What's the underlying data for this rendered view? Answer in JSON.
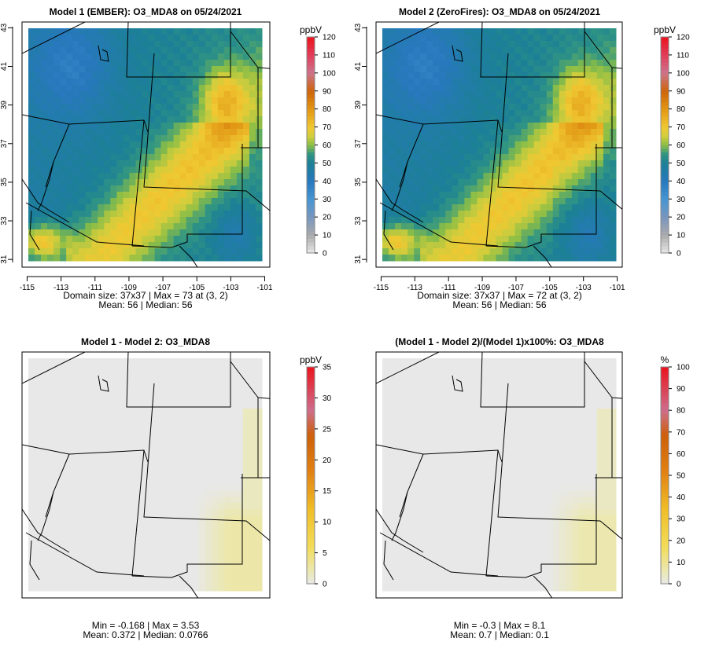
{
  "chart_data": [
    {
      "type": "heatmap",
      "title": "Model 1 (EMBER): O3_MDA8 on 05/24/2021",
      "colorbar_label": "ppbV",
      "colorbar_ticks": [
        "0",
        "10",
        "20",
        "30",
        "40",
        "50",
        "60",
        "70",
        "80",
        "90",
        "100",
        "110",
        "120"
      ],
      "color_range": [
        0,
        120
      ],
      "xticks": [
        "-115",
        "-113",
        "-111",
        "-109",
        "-107",
        "-105",
        "-103",
        "-101"
      ],
      "yticks": [
        "31",
        "33",
        "35",
        "37",
        "39",
        "41",
        "43"
      ],
      "xlim": [
        -115.3,
        -100.7
      ],
      "ylim": [
        30.6,
        43.3
      ],
      "stats_line1": "Domain size: 37x37 | Max = 73 at (3, 2)",
      "stats_line2": "Mean: 56 |  Median: 56",
      "field": {
        "mean": 56,
        "max": 73
      }
    },
    {
      "type": "heatmap",
      "title": "Model 2 (ZeroFires): O3_MDA8 on 05/24/2021",
      "colorbar_label": "ppbV",
      "colorbar_ticks": [
        "0",
        "10",
        "20",
        "30",
        "40",
        "50",
        "60",
        "70",
        "80",
        "90",
        "100",
        "110",
        "120"
      ],
      "color_range": [
        0,
        120
      ],
      "xticks": [
        "-115",
        "-113",
        "-111",
        "-109",
        "-107",
        "-105",
        "-103",
        "-101"
      ],
      "yticks": [
        "31",
        "33",
        "35",
        "37",
        "39",
        "41",
        "43"
      ],
      "xlim": [
        -115.3,
        -100.7
      ],
      "ylim": [
        30.6,
        43.3
      ],
      "stats_line1": "Domain size: 37x37 | Max = 72 at (3, 2)",
      "stats_line2": "Mean: 56 |  Median: 56",
      "field": {
        "mean": 56,
        "max": 72
      }
    },
    {
      "type": "heatmap",
      "title": "Model 1 - Model 2: O3_MDA8",
      "colorbar_label": "ppbV",
      "colorbar_ticks": [
        "0",
        "5",
        "10",
        "15",
        "20",
        "25",
        "30",
        "35"
      ],
      "color_range": [
        0,
        35
      ],
      "xticks": [],
      "yticks": [],
      "stats_line1": "Min = -0.168 | Max = 3.53",
      "stats_line2": "Mean: 0.372 |  Median: 0.0766",
      "field": {
        "min": -0.168,
        "max": 3.53
      }
    },
    {
      "type": "heatmap",
      "title": "(Model 1 - Model 2)/(Model 1)x100%: O3_MDA8",
      "colorbar_label": "%",
      "colorbar_ticks": [
        "0",
        "10",
        "20",
        "30",
        "40",
        "50",
        "60",
        "70",
        "80",
        "90",
        "100"
      ],
      "color_range": [
        0,
        100
      ],
      "xticks": [],
      "yticks": [],
      "stats_line1": "Min = -0.3 | Max = 8.1",
      "stats_line2": "Mean: 0.7 |  Median: 0.1",
      "field": {
        "min": -0.3,
        "max": 8.1
      }
    }
  ]
}
